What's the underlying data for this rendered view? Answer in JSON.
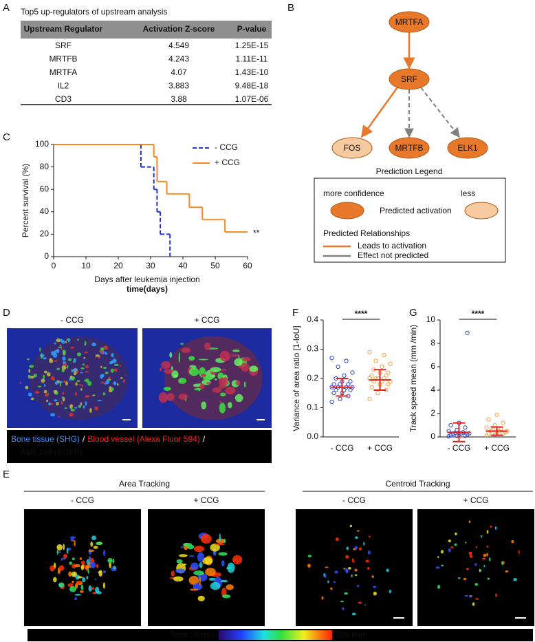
{
  "panels": [
    "A",
    "B",
    "C",
    "D",
    "E",
    "F",
    "G"
  ],
  "table": {
    "title": "Top5 up-regulators of upstream analysis",
    "columns": [
      "Upstream Regulator",
      "Activation Z-score",
      "P-value"
    ],
    "rows": [
      [
        "SRF",
        "4.549",
        "1.25E-15"
      ],
      [
        "MRTFB",
        "4.243",
        "1.11E-11"
      ],
      [
        "MRTFA",
        "4.07",
        "1.43E-10"
      ],
      [
        "IL2",
        "3.883",
        "9.48E-18"
      ],
      [
        "CD3",
        "3.88",
        "1.07E-06"
      ]
    ]
  },
  "diagram": {
    "nodes": [
      "MRTFA",
      "SRF",
      "FOS",
      "MRTFB",
      "ELK1"
    ],
    "legend": {
      "title": "Prediction Legend",
      "more": "more confidence",
      "less": "less",
      "activation": "Predicted activation",
      "relationships": "Predicted Relationships",
      "leads": "Leads to activation",
      "not_predicted": "Effect not predicted"
    }
  },
  "microscopy": {
    "conditions": [
      "- CCG",
      "+ CCG"
    ],
    "legend": [
      "Bone tissue (SHG)",
      "/",
      "Blood vessel (Alexa Fluor 594)",
      "/",
      "AML cell (EGFP)"
    ]
  },
  "tracking": {
    "groups": [
      {
        "title": "Area Tracking",
        "conditions": [
          "- CCG",
          "+ CCG"
        ]
      },
      {
        "title": "Centroid Tracking",
        "conditions": [
          "- CCG",
          "+ CCG"
        ]
      }
    ],
    "colorbar": {
      "start": "Time : 0 min",
      "end": "120 min"
    }
  },
  "chart_data": [
    {
      "type": "step",
      "xlabel": "Days after leukemia injection",
      "xlabel2": "time(days)",
      "ylabel": "Percent survival (%)",
      "xlim": [
        0,
        60
      ],
      "xticks": [
        0,
        10,
        20,
        30,
        40,
        50,
        60
      ],
      "ylim": [
        0,
        100
      ],
      "yticks": [
        0,
        20,
        40,
        60,
        80,
        100
      ],
      "annotation": "**",
      "series": [
        {
          "name": "- CCG",
          "color": "#2233cc",
          "dashed": true,
          "x": [
            0,
            27,
            31,
            32,
            33,
            36
          ],
          "values": [
            100,
            80,
            60,
            40,
            20,
            0
          ]
        },
        {
          "name": "+ CCG",
          "color": "#f28a1c",
          "dashed": false,
          "x": [
            0,
            31,
            32,
            35,
            42,
            46,
            53,
            60
          ],
          "values": [
            100,
            89,
            67,
            56,
            44,
            33,
            22,
            22
          ]
        }
      ]
    },
    {
      "type": "strip",
      "ylabel": "Variance of area ratio [1-IoU]",
      "ylim": [
        0,
        0.4
      ],
      "yticks": [
        {
          "value": 0,
          "label": "0.0"
        },
        0.1,
        0.2,
        0.3,
        0.4
      ],
      "annotation": "****",
      "categories": [
        "- CCG",
        "+ CCG"
      ],
      "error_color": "#e0201b",
      "series": [
        {
          "color": "#3344cc",
          "mean": 0.17,
          "sd": 0.03,
          "values": [
            0.12,
            0.13,
            0.14,
            0.15,
            0.15,
            0.16,
            0.16,
            0.16,
            0.17,
            0.17,
            0.17,
            0.17,
            0.18,
            0.18,
            0.18,
            0.19,
            0.19,
            0.2,
            0.21,
            0.22,
            0.24,
            0.26,
            0.27
          ]
        },
        {
          "color": "#f5a040",
          "mean": 0.195,
          "sd": 0.035,
          "values": [
            0.13,
            0.15,
            0.16,
            0.17,
            0.18,
            0.18,
            0.19,
            0.19,
            0.19,
            0.2,
            0.2,
            0.2,
            0.2,
            0.21,
            0.21,
            0.22,
            0.22,
            0.23,
            0.24,
            0.25,
            0.26,
            0.28,
            0.29
          ]
        }
      ]
    },
    {
      "type": "strip",
      "ylabel": "Track speed mean (mm /min)",
      "ylim": [
        0,
        10
      ],
      "yticks": [
        0,
        2,
        4,
        6,
        8,
        10
      ],
      "annotation": "****",
      "categories": [
        "- CCG",
        "+ CCG"
      ],
      "error_color": "#e0201b",
      "series": [
        {
          "color": "#3344cc",
          "mean": 0.4,
          "sd": 0.8,
          "values": [
            0.05,
            0.1,
            0.1,
            0.15,
            0.2,
            0.2,
            0.25,
            0.3,
            0.3,
            0.35,
            0.4,
            0.5,
            0.6,
            0.8,
            1.0,
            1.2,
            8.9
          ]
        },
        {
          "color": "#f5a040",
          "mean": 0.5,
          "sd": 0.35,
          "values": [
            0.1,
            0.2,
            0.3,
            0.3,
            0.4,
            0.4,
            0.5,
            0.5,
            0.5,
            0.6,
            0.7,
            0.8,
            1.0,
            1.2,
            1.5,
            1.9
          ]
        }
      ]
    }
  ]
}
